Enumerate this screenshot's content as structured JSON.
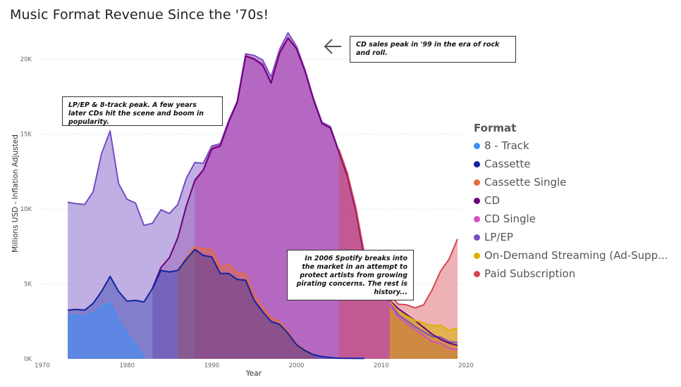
{
  "chart_data": {
    "type": "area",
    "title": "Music Format Revenue Since the '70s!",
    "xlabel": "Year",
    "ylabel": "Millions USD - Inflation Adjusted",
    "xlim": [
      1970,
      2020
    ],
    "ylim": [
      0,
      24000
    ],
    "xticks": [
      "1970",
      "1980",
      "1990",
      "2000",
      "2010",
      "2020"
    ],
    "yticks": [
      "0K",
      "5K",
      "10K",
      "15K",
      "20K"
    ],
    "legend_title": "Format",
    "legend_position": "right",
    "colors": {
      "8 - Track": "#3e8ef7",
      "Cassette": "#12239e",
      "Cassette Single": "#e66c37",
      "CD": "#6b007b",
      "CD Single": "#d64ec2",
      "LP/EP": "#744ec2",
      "On-Demand Streaming (Ad-Supp...": "#d9b300",
      "Paid Subscription": "#d64550"
    },
    "series_cumulative": [
      {
        "name": "8 - Track",
        "points": [
          [
            1973,
            2850
          ],
          [
            1974,
            2900
          ],
          [
            1975,
            2800
          ],
          [
            1976,
            3050
          ],
          [
            1977,
            3450
          ],
          [
            1978,
            3750
          ],
          [
            1979,
            2500
          ],
          [
            1980,
            1700
          ],
          [
            1981,
            900
          ],
          [
            1982,
            50
          ]
        ]
      },
      {
        "name": "Cassette",
        "points": [
          [
            1973,
            3250
          ],
          [
            1974,
            3300
          ],
          [
            1975,
            3250
          ],
          [
            1976,
            3700
          ],
          [
            1977,
            4500
          ],
          [
            1978,
            5500
          ],
          [
            1979,
            4500
          ],
          [
            1980,
            3850
          ],
          [
            1981,
            3900
          ],
          [
            1982,
            3800
          ],
          [
            1983,
            4700
          ],
          [
            1984,
            5900
          ],
          [
            1985,
            5800
          ],
          [
            1986,
            5900
          ],
          [
            1987,
            6650
          ],
          [
            1988,
            7300
          ],
          [
            1989,
            6900
          ],
          [
            1990,
            6800
          ],
          [
            1991,
            5700
          ],
          [
            1992,
            5700
          ],
          [
            1993,
            5300
          ],
          [
            1994,
            5250
          ],
          [
            1995,
            3900
          ],
          [
            1996,
            3150
          ],
          [
            1997,
            2500
          ],
          [
            1998,
            2300
          ],
          [
            1999,
            1700
          ],
          [
            2000,
            950
          ],
          [
            2001,
            550
          ],
          [
            2002,
            280
          ],
          [
            2003,
            150
          ],
          [
            2004,
            80
          ],
          [
            2005,
            40
          ],
          [
            2008,
            30
          ]
        ]
      },
      {
        "name": "Cassette Single",
        "points": [
          [
            1986,
            5920
          ],
          [
            1987,
            6750
          ],
          [
            1988,
            7480
          ],
          [
            1989,
            7300
          ],
          [
            1990,
            7300
          ],
          [
            1991,
            6100
          ],
          [
            1992,
            6300
          ],
          [
            1993,
            5750
          ],
          [
            1994,
            5650
          ],
          [
            1995,
            4250
          ],
          [
            1996,
            3450
          ],
          [
            1997,
            2750
          ],
          [
            1998,
            2450
          ],
          [
            1999,
            1800
          ],
          [
            2000,
            1000
          ],
          [
            2001,
            600
          ],
          [
            2002,
            300
          ]
        ]
      },
      {
        "name": "CD",
        "points": [
          [
            1983,
            4720
          ],
          [
            1984,
            6100
          ],
          [
            1985,
            6750
          ],
          [
            1986,
            8100
          ],
          [
            1987,
            10200
          ],
          [
            1988,
            11900
          ],
          [
            1989,
            12600
          ],
          [
            1990,
            14000
          ],
          [
            1991,
            14200
          ],
          [
            1992,
            15800
          ],
          [
            1993,
            17100
          ],
          [
            1994,
            20200
          ],
          [
            1995,
            20000
          ],
          [
            1996,
            19600
          ],
          [
            1997,
            18400
          ],
          [
            1998,
            20400
          ],
          [
            1999,
            21400
          ],
          [
            2000,
            20700
          ],
          [
            2001,
            19200
          ],
          [
            2002,
            17300
          ],
          [
            2003,
            15700
          ],
          [
            2004,
            15400
          ],
          [
            2005,
            13800
          ],
          [
            2006,
            12200
          ],
          [
            2007,
            9900
          ],
          [
            2008,
            6800
          ],
          [
            2009,
            5250
          ],
          [
            2010,
            4500
          ],
          [
            2011,
            3900
          ],
          [
            2012,
            3350
          ],
          [
            2013,
            2950
          ],
          [
            2014,
            2550
          ],
          [
            2015,
            2100
          ],
          [
            2016,
            1650
          ],
          [
            2017,
            1300
          ],
          [
            2018,
            1050
          ],
          [
            2019,
            900
          ]
        ]
      },
      {
        "name": "CD Single",
        "points": [
          [
            1988,
            11950
          ],
          [
            1989,
            12650
          ],
          [
            1990,
            14100
          ],
          [
            1991,
            14250
          ],
          [
            1992,
            15850
          ],
          [
            1993,
            17150
          ],
          [
            1994,
            20250
          ],
          [
            1995,
            20050
          ],
          [
            1996,
            19700
          ],
          [
            1997,
            18500
          ],
          [
            1998,
            20500
          ],
          [
            1999,
            21450
          ],
          [
            2000,
            20750
          ],
          [
            2001,
            19250
          ],
          [
            2002,
            17350
          ],
          [
            2003,
            15730
          ],
          [
            2004,
            15420
          ],
          [
            2005,
            13800
          ],
          [
            2006,
            12200
          ],
          [
            2007,
            9900
          ],
          [
            2008,
            6800
          ],
          [
            2009,
            5250
          ],
          [
            2010,
            4500
          ],
          [
            2011,
            3650
          ],
          [
            2012,
            2800
          ],
          [
            2013,
            2350
          ],
          [
            2014,
            1950
          ],
          [
            2015,
            1550
          ],
          [
            2016,
            1150
          ],
          [
            2017,
            1050
          ],
          [
            2018,
            700
          ],
          [
            2019,
            620
          ]
        ]
      },
      {
        "name": "LP/EP",
        "points": [
          [
            1973,
            10450
          ],
          [
            1974,
            10350
          ],
          [
            1975,
            10300
          ],
          [
            1976,
            11150
          ],
          [
            1977,
            13700
          ],
          [
            1978,
            15200
          ],
          [
            1979,
            11700
          ],
          [
            1980,
            10650
          ],
          [
            1981,
            10400
          ],
          [
            1982,
            8900
          ],
          [
            1983,
            9050
          ],
          [
            1984,
            9950
          ],
          [
            1985,
            9700
          ],
          [
            1986,
            10300
          ],
          [
            1987,
            12050
          ],
          [
            1988,
            13100
          ],
          [
            1989,
            13050
          ],
          [
            1990,
            14200
          ],
          [
            1991,
            14350
          ],
          [
            1992,
            15900
          ],
          [
            1993,
            17200
          ],
          [
            1994,
            20350
          ],
          [
            1995,
            20250
          ],
          [
            1996,
            19950
          ],
          [
            1997,
            18800
          ],
          [
            1998,
            20650
          ],
          [
            1999,
            21750
          ],
          [
            2000,
            20850
          ],
          [
            2001,
            19300
          ],
          [
            2002,
            17400
          ],
          [
            2003,
            15800
          ],
          [
            2004,
            15500
          ],
          [
            2005,
            13850
          ],
          [
            2006,
            12250
          ],
          [
            2007,
            9950
          ],
          [
            2008,
            6900
          ],
          [
            2009,
            5350
          ],
          [
            2010,
            4600
          ],
          [
            2011,
            3800
          ],
          [
            2012,
            2950
          ],
          [
            2013,
            2550
          ],
          [
            2014,
            2150
          ],
          [
            2015,
            1800
          ],
          [
            2016,
            1500
          ],
          [
            2017,
            1450
          ],
          [
            2018,
            1150
          ],
          [
            2019,
            1100
          ]
        ]
      },
      {
        "name": "On-Demand Streaming (Ad-Supp...",
        "points": [
          [
            2011,
            3850
          ],
          [
            2012,
            3150
          ],
          [
            2013,
            2850
          ],
          [
            2014,
            2550
          ],
          [
            2015,
            2400
          ],
          [
            2016,
            2200
          ],
          [
            2017,
            2250
          ],
          [
            2018,
            1900
          ],
          [
            2019,
            2050
          ]
        ]
      },
      {
        "name": "Paid Subscription",
        "points": [
          [
            2005,
            14000
          ],
          [
            2006,
            12400
          ],
          [
            2007,
            10100
          ],
          [
            2008,
            7050
          ],
          [
            2009,
            5450
          ],
          [
            2010,
            4700
          ],
          [
            2011,
            4300
          ],
          [
            2012,
            3650
          ],
          [
            2013,
            3600
          ],
          [
            2014,
            3400
          ],
          [
            2015,
            3600
          ],
          [
            2016,
            4600
          ],
          [
            2017,
            5850
          ],
          [
            2018,
            6650
          ],
          [
            2019,
            8000
          ]
        ]
      }
    ],
    "annotations": [
      {
        "year": 1999,
        "text": "CD sales peak in '99 in the era of rock and roll."
      },
      {
        "year": 1978,
        "text": "LP/EP & 8-track peak. A few years later CDs hit the scene and boom in popularity."
      },
      {
        "year": 2006,
        "text": "In 2006 Spotify breaks into the market in an attempt to protect artists from growing pirating concerns. The rest is history..."
      }
    ]
  }
}
